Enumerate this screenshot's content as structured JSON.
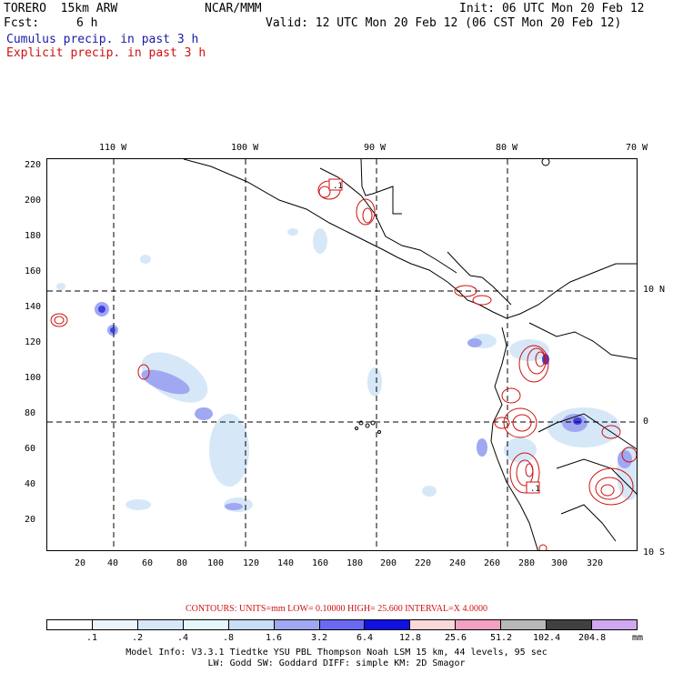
{
  "header": {
    "model": "TORERO  15km ARW",
    "org": "NCAR/MMM",
    "init": "Init: 06 UTC Mon 20 Feb 12",
    "fcst_label": "Fcst:",
    "fcst_value": "6 h",
    "valid": "Valid: 12 UTC Mon 20 Feb 12 (06 CST Mon 20 Feb 12)",
    "legend_cumulus": "Cumulus precip. in past 3 h",
    "legend_explicit": "Explicit precip. in past 3 h"
  },
  "map": {
    "lon_labels": [
      "110 W",
      "100 W",
      "90 W",
      "80 W",
      "70 W"
    ],
    "lat_labels": [
      "10 N",
      "0",
      "10 S"
    ],
    "y_ticks": [
      "220",
      "200",
      "180",
      "160",
      "140",
      "120",
      "100",
      "80",
      "60",
      "40",
      "20"
    ],
    "x_ticks": [
      "20",
      "40",
      "60",
      "80",
      "100",
      "120",
      "140",
      "160",
      "180",
      "200",
      "220",
      "240",
      "260",
      "280",
      "300",
      "320"
    ],
    "max_labels": [
      ".1",
      ".1"
    ]
  },
  "contours_line": "CONTOURS:  UNITS=mm  LOW= 0.10000      HIGH=  25.600      INTERVAL=X  4.0000",
  "colorbar": {
    "colors": [
      "#ffffff",
      "#ecf4fb",
      "#d6e8f8",
      "#e4f8fc",
      "#c8def6",
      "#a0a8f2",
      "#6a6af0",
      "#1010e0",
      "#f8d8d8",
      "#f4a0c0",
      "#b8b8b8",
      "#404040",
      "#d0a8f0"
    ],
    "labels": [
      ".1",
      ".2",
      ".4",
      ".8",
      "1.6",
      "3.2",
      "6.4",
      "12.8",
      "25.6",
      "51.2",
      "102.4",
      "204.8"
    ],
    "unit": "mm"
  },
  "footer": {
    "line1": "Model Info: V3.3.1    Tiedtke YSU PBL  Thompson     Noah LSM  15 km,   44 levels,   95 sec",
    "line2": "LW: Godd SW: Goddard DIFF: simple KM: 2D Smagor"
  }
}
